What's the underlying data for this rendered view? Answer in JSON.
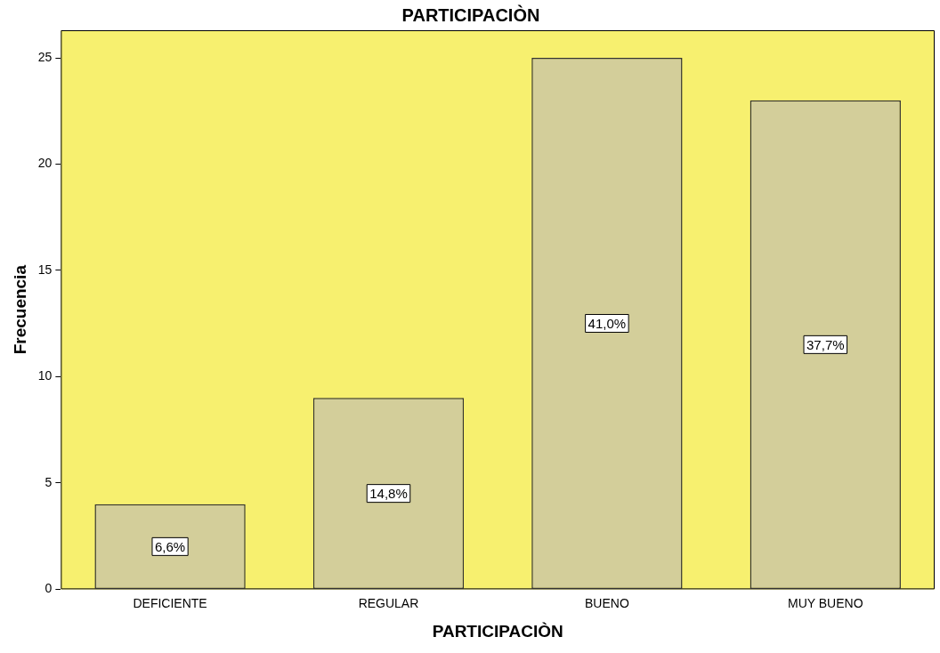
{
  "chart_data": {
    "type": "bar",
    "title": "PARTICIPACIÒN",
    "xlabel": "PARTICIPACIÒN",
    "ylabel": "Frecuencia",
    "categories": [
      "DEFICIENTE",
      "REGULAR",
      "BUENO",
      "MUY BUENO"
    ],
    "values": [
      4,
      9,
      25,
      23
    ],
    "annotations": [
      "6,6%",
      "14,8%",
      "41,0%",
      "37,7%"
    ],
    "color": "#d3ce9a",
    "ylim": [
      0,
      26.3
    ],
    "yticks": [
      0,
      5,
      10,
      15,
      20,
      25
    ],
    "grid": false,
    "legend": false
  }
}
